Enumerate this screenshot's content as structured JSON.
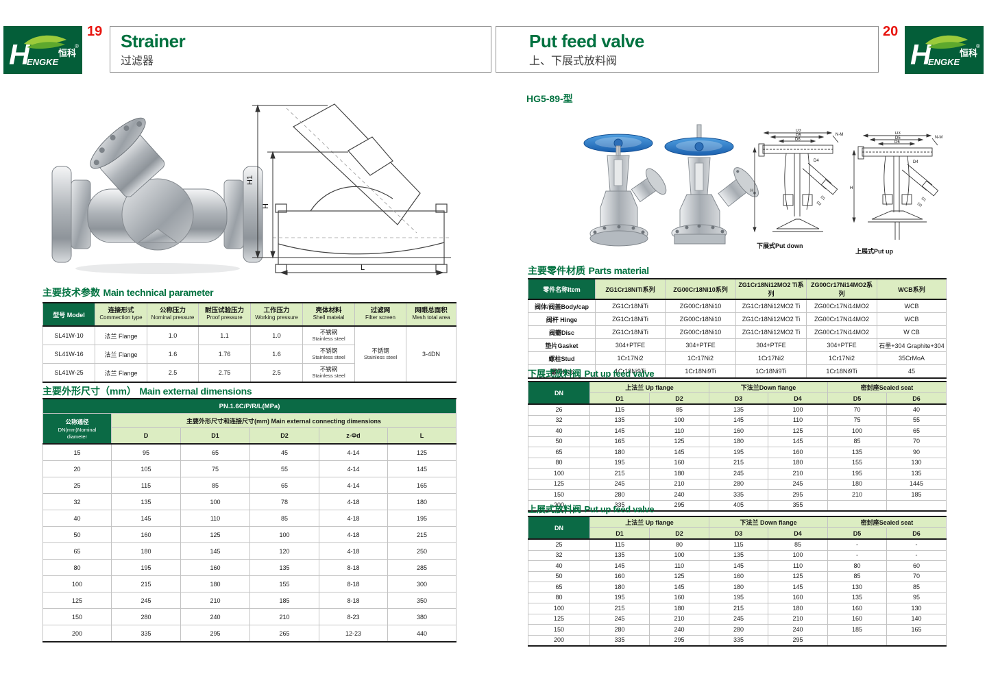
{
  "header": {
    "logo": {
      "h": "H",
      "word": "ENGKE",
      "zh": "恒科",
      "reg": "®"
    },
    "left": {
      "page_no": "19",
      "title_en": "Strainer",
      "title_zh": "过滤器"
    },
    "right": {
      "page_no": "20",
      "title_en": "Put feed valve",
      "title_zh": "上、下展式放料阀"
    }
  },
  "left": {
    "drawing_labels": {
      "h1": "H1",
      "h": "H",
      "l": "L"
    },
    "tech": {
      "title_zh": "主要技术参数",
      "title_en": "Main technical parameter",
      "head0": "型号 Model",
      "cols": [
        {
          "zh": "连接形式",
          "en": "Commection type"
        },
        {
          "zh": "公称压力",
          "en": "Nominal pressure"
        },
        {
          "zh": "耐压试验压力",
          "en": "Proof pressure"
        },
        {
          "zh": "工作压力",
          "en": "Working pressure"
        },
        {
          "zh": "壳体材料",
          "en": "Shell mateial"
        },
        {
          "zh": "过滤网",
          "en": "Filter screen"
        },
        {
          "zh": "网眼总面积",
          "en": "Mesh total area"
        }
      ],
      "rows": [
        {
          "model": "SL41W-10",
          "conn": "法兰 Flange",
          "pn": "1.0",
          "proof": "1.1",
          "work": "1.0",
          "shell_zh": "不锈钢",
          "shell_en": "Stainless steel"
        },
        {
          "model": "SL41W-16",
          "conn": "法兰 Flange",
          "pn": "1.6",
          "proof": "1.76",
          "work": "1.6",
          "shell_zh": "不锈钢",
          "shell_en": "Stainless steel"
        },
        {
          "model": "SL41W-25",
          "conn": "法兰 Flange",
          "pn": "2.5",
          "proof": "2.75",
          "work": "2.5",
          "shell_zh": "不锈钢",
          "shell_en": "Stainless steel"
        }
      ],
      "filter_zh": "不锈钢",
      "filter_en": "Stainless steel",
      "mesh": "3-4DN"
    },
    "dims": {
      "title_zh": "主要外形尺寸（mm）",
      "title_en": "Main external dimensions",
      "pn_band": "PN.1.6C/P/R/L(MPa)",
      "dn_zh": "公称通径",
      "dn_en1": "DN(mm)Nominal",
      "dn_en2": "diameter",
      "group": "主要外形尺寸和连接尺寸(mm) Main external connecting dimensions",
      "sub": [
        "D",
        "D1",
        "D2",
        "z-Φd",
        "L"
      ],
      "rows": [
        [
          "15",
          "95",
          "65",
          "45",
          "4-14",
          "125"
        ],
        [
          "20",
          "105",
          "75",
          "55",
          "4-14",
          "145"
        ],
        [
          "25",
          "115",
          "85",
          "65",
          "4-14",
          "165"
        ],
        [
          "32",
          "135",
          "100",
          "78",
          "4-18",
          "180"
        ],
        [
          "40",
          "145",
          "110",
          "85",
          "4-18",
          "195"
        ],
        [
          "50",
          "160",
          "125",
          "100",
          "4-18",
          "215"
        ],
        [
          "65",
          "180",
          "145",
          "120",
          "4-18",
          "250"
        ],
        [
          "80",
          "195",
          "160",
          "135",
          "8-18",
          "285"
        ],
        [
          "100",
          "215",
          "180",
          "155",
          "8-18",
          "300"
        ],
        [
          "125",
          "245",
          "210",
          "185",
          "8-18",
          "350"
        ],
        [
          "150",
          "280",
          "240",
          "210",
          "8-23",
          "380"
        ],
        [
          "200",
          "335",
          "295",
          "265",
          "12-23",
          "440"
        ]
      ]
    }
  },
  "right": {
    "model_code": "HG5-89-型",
    "drawings": {
      "d3": "D3",
      "d5": "D5",
      "d6": "D6",
      "nm": "N-M",
      "d4": "D4",
      "h": "H",
      "d1": "D1",
      "d2": "D2",
      "cap_down": "下展式Put down",
      "cap_up": "上展式Put up"
    },
    "parts": {
      "title_zh": "主要零件材质",
      "title_en": "Parts material",
      "head0": "零件名称Item",
      "cols": [
        "ZG1Cr18NiTi系列",
        "ZG00Cr18Ni10系列",
        "ZG1Cr18Ni12MO2 Ti系列",
        "ZG00Cr17Ni14MO2系列",
        "WCB系列"
      ],
      "rows": [
        [
          "阀体/阀盖Body/cap",
          "ZG1Cr18NiTi",
          "ZG00Cr18Ni10",
          "ZG1Cr18Ni12MO2 Ti",
          "ZG00Cr17Ni14MO2",
          "WCB"
        ],
        [
          "阀杆 Hinge",
          "ZG1Cr18NiTi",
          "ZG00Cr18Ni10",
          "ZG1Cr18Ni12MO2 Ti",
          "ZG00Cr17Ni14MO2",
          "WCB"
        ],
        [
          "阀瓣Disc",
          "ZG1Cr18NiTi",
          "ZG00Cr18Ni10",
          "ZG1Cr18Ni12MO2 Ti",
          "ZG00Cr17Ni14MO2",
          "W CB"
        ],
        [
          "垫片Gasket",
          "304+PTFE",
          "304+PTFE",
          "304+PTFE",
          "304+PTFE",
          "石墨+304 Graphite+304"
        ],
        [
          "螺柱Stud",
          "1Cr17Ni2",
          "1Cr17Ni2",
          "1Cr17Ni2",
          "1Cr17Ni2",
          "35CrMoA"
        ],
        [
          "螺母Nut",
          "1Cr18Ni9Ti",
          "1Cr18Ni9Ti",
          "1Cr18Ni9Ti",
          "1Cr18Ni9Ti",
          "45"
        ]
      ]
    },
    "down_table": {
      "title_zh": "下展式放料阀",
      "title_en": "Put up feed valve",
      "dn": "DN",
      "groups": [
        "上法兰 Up flange",
        "下法兰Down flange",
        "密封座Sealed seat"
      ],
      "sub": [
        "D1",
        "D2",
        "D3",
        "D4",
        "D5",
        "D6"
      ],
      "rows": [
        [
          "26",
          "115",
          "85",
          "135",
          "100",
          "70",
          "40"
        ],
        [
          "32",
          "135",
          "100",
          "145",
          "110",
          "75",
          "55"
        ],
        [
          "40",
          "145",
          "110",
          "160",
          "125",
          "100",
          "65"
        ],
        [
          "50",
          "165",
          "125",
          "180",
          "145",
          "85",
          "70"
        ],
        [
          "65",
          "180",
          "145",
          "195",
          "160",
          "135",
          "90"
        ],
        [
          "80",
          "195",
          "160",
          "215",
          "180",
          "155",
          "130"
        ],
        [
          "100",
          "215",
          "180",
          "245",
          "210",
          "195",
          "135"
        ],
        [
          "125",
          "245",
          "210",
          "280",
          "245",
          "180",
          "1445"
        ],
        [
          "150",
          "280",
          "240",
          "335",
          "295",
          "210",
          "185"
        ],
        [
          "200",
          "335",
          "295",
          "405",
          "355",
          "",
          ""
        ]
      ]
    },
    "up_table": {
      "title_zh": "上展式放料阀",
      "title_en": "Put up feed valve",
      "dn": "DN",
      "groups": [
        "上法兰 Up flange",
        "下法兰 Down flange",
        "密封座Sealed seat"
      ],
      "sub": [
        "D1",
        "D2",
        "D3",
        "D4",
        "D5",
        "D6"
      ],
      "rows": [
        [
          "25",
          "115",
          "80",
          "115",
          "85",
          "-",
          "-"
        ],
        [
          "32",
          "135",
          "100",
          "135",
          "100",
          "-",
          "-"
        ],
        [
          "40",
          "145",
          "110",
          "145",
          "110",
          "80",
          "60"
        ],
        [
          "50",
          "160",
          "125",
          "160",
          "125",
          "85",
          "70"
        ],
        [
          "65",
          "180",
          "145",
          "180",
          "145",
          "130",
          "85"
        ],
        [
          "80",
          "195",
          "160",
          "195",
          "160",
          "135",
          "95"
        ],
        [
          "100",
          "215",
          "180",
          "215",
          "180",
          "160",
          "130"
        ],
        [
          "125",
          "245",
          "210",
          "245",
          "210",
          "160",
          "140"
        ],
        [
          "150",
          "280",
          "240",
          "280",
          "240",
          "185",
          "165"
        ],
        [
          "200",
          "335",
          "295",
          "335",
          "295",
          "",
          ""
        ]
      ]
    }
  }
}
